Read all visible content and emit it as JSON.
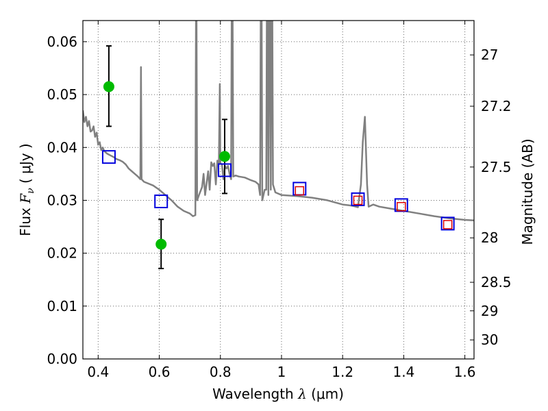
{
  "chart_data": {
    "type": "scatter",
    "title": "",
    "xlabel": {
      "prefix": "Wavelength  ",
      "symbol": "λ",
      "units": " (μm)"
    },
    "ylabel": {
      "prefix": "Flux  ",
      "symbol": "F",
      "sub": "ν",
      "units": "  ( μJy )"
    },
    "y2label": "Magnitude (AB)",
    "xlim": [
      0.35,
      1.63
    ],
    "ylim": [
      0.0,
      0.064
    ],
    "xticks": [
      0.4,
      0.6,
      0.8,
      1.0,
      1.2,
      1.4,
      1.6
    ],
    "xtick_labels": [
      "0.4",
      "0.6",
      "0.8",
      "1",
      "1.2",
      "1.4",
      "1.6"
    ],
    "yticks": [
      0.0,
      0.01,
      0.02,
      0.03,
      0.04,
      0.05,
      0.06
    ],
    "ytick_labels": [
      "0.00",
      "0.01",
      "0.02",
      "0.03",
      "0.04",
      "0.05",
      "0.06"
    ],
    "y2ticks": [
      {
        "label": "27",
        "flux": 0.0575
      },
      {
        "label": "27.2",
        "flux": 0.0478
      },
      {
        "label": "27.5",
        "flux": 0.0363
      },
      {
        "label": "28",
        "flux": 0.0229
      },
      {
        "label": "28.5",
        "flux": 0.0145
      },
      {
        "label": "29",
        "flux": 0.0091
      },
      {
        "label": "30",
        "flux": 0.0036
      }
    ],
    "grid": true,
    "colors": {
      "spectrum": "#808080",
      "observed": "#00bb00",
      "errorbar": "#000000",
      "model": "#0000dd",
      "model_inner": "#dd0000"
    },
    "series": [
      {
        "name": "model spectrum",
        "type": "line",
        "points": [
          [
            0.35,
            0.047
          ],
          [
            0.355,
            0.0448
          ],
          [
            0.36,
            0.0458
          ],
          [
            0.365,
            0.044
          ],
          [
            0.37,
            0.045
          ],
          [
            0.375,
            0.043
          ],
          [
            0.38,
            0.0432
          ],
          [
            0.385,
            0.044
          ],
          [
            0.39,
            0.042
          ],
          [
            0.395,
            0.0428
          ],
          [
            0.4,
            0.0405
          ],
          [
            0.405,
            0.041
          ],
          [
            0.41,
            0.0395
          ],
          [
            0.415,
            0.04
          ],
          [
            0.42,
            0.0393
          ],
          [
            0.43,
            0.0388
          ],
          [
            0.44,
            0.0385
          ],
          [
            0.45,
            0.0382
          ],
          [
            0.46,
            0.0378
          ],
          [
            0.47,
            0.0376
          ],
          [
            0.48,
            0.0373
          ],
          [
            0.49,
            0.0368
          ],
          [
            0.5,
            0.036
          ],
          [
            0.51,
            0.0355
          ],
          [
            0.52,
            0.035
          ],
          [
            0.53,
            0.0345
          ],
          [
            0.538,
            0.034
          ],
          [
            0.54,
            0.0552
          ],
          [
            0.542,
            0.034
          ],
          [
            0.55,
            0.0335
          ],
          [
            0.58,
            0.0328
          ],
          [
            0.6,
            0.032
          ],
          [
            0.62,
            0.031
          ],
          [
            0.64,
            0.03
          ],
          [
            0.66,
            0.0288
          ],
          [
            0.68,
            0.028
          ],
          [
            0.7,
            0.0275
          ],
          [
            0.71,
            0.027
          ],
          [
            0.718,
            0.0272
          ],
          [
            0.72,
            0.064
          ],
          [
            0.722,
            0.064
          ],
          [
            0.724,
            0.03
          ],
          [
            0.73,
            0.031
          ],
          [
            0.74,
            0.0325
          ],
          [
            0.745,
            0.035
          ],
          [
            0.75,
            0.031
          ],
          [
            0.76,
            0.0355
          ],
          [
            0.765,
            0.032
          ],
          [
            0.77,
            0.0372
          ],
          [
            0.775,
            0.0365
          ],
          [
            0.78,
            0.037
          ],
          [
            0.785,
            0.033
          ],
          [
            0.79,
            0.0375
          ],
          [
            0.795,
            0.0368
          ],
          [
            0.798,
            0.052
          ],
          [
            0.8,
            0.037
          ],
          [
            0.805,
            0.0368
          ],
          [
            0.81,
            0.034
          ],
          [
            0.815,
            0.0365
          ],
          [
            0.82,
            0.036
          ],
          [
            0.825,
            0.0365
          ],
          [
            0.83,
            0.035
          ],
          [
            0.835,
            0.034
          ],
          [
            0.837,
            0.064
          ],
          [
            0.84,
            0.064
          ],
          [
            0.842,
            0.0345
          ],
          [
            0.85,
            0.0347
          ],
          [
            0.86,
            0.0345
          ],
          [
            0.88,
            0.0343
          ],
          [
            0.9,
            0.0338
          ],
          [
            0.915,
            0.0335
          ],
          [
            0.925,
            0.033
          ],
          [
            0.93,
            0.031
          ],
          [
            0.932,
            0.064
          ],
          [
            0.935,
            0.064
          ],
          [
            0.937,
            0.03
          ],
          [
            0.945,
            0.032
          ],
          [
            0.95,
            0.032
          ],
          [
            0.952,
            0.064
          ],
          [
            0.955,
            0.064
          ],
          [
            0.957,
            0.031
          ],
          [
            0.96,
            0.064
          ],
          [
            0.963,
            0.064
          ],
          [
            0.965,
            0.032
          ],
          [
            0.967,
            0.064
          ],
          [
            0.97,
            0.064
          ],
          [
            0.972,
            0.033
          ],
          [
            0.98,
            0.0315
          ],
          [
            1.0,
            0.031
          ],
          [
            1.05,
            0.0308
          ],
          [
            1.1,
            0.0305
          ],
          [
            1.15,
            0.03
          ],
          [
            1.2,
            0.0292
          ],
          [
            1.23,
            0.029
          ],
          [
            1.25,
            0.0287
          ],
          [
            1.26,
            0.033
          ],
          [
            1.266,
            0.041
          ],
          [
            1.273,
            0.0458
          ],
          [
            1.28,
            0.033
          ],
          [
            1.285,
            0.0288
          ],
          [
            1.3,
            0.0292
          ],
          [
            1.32,
            0.0288
          ],
          [
            1.35,
            0.0285
          ],
          [
            1.4,
            0.028
          ],
          [
            1.45,
            0.0275
          ],
          [
            1.5,
            0.027
          ],
          [
            1.55,
            0.0266
          ],
          [
            1.6,
            0.0263
          ],
          [
            1.63,
            0.0262
          ]
        ]
      },
      {
        "name": "observed photometry",
        "type": "scatter-errorbar",
        "points": [
          {
            "x": 0.435,
            "y": 0.0515,
            "ylow": 0.044,
            "yhigh": 0.0592
          },
          {
            "x": 0.606,
            "y": 0.0217,
            "ylow": 0.0171,
            "yhigh": 0.0264
          },
          {
            "x": 0.814,
            "y": 0.0383,
            "ylow": 0.0313,
            "yhigh": 0.0453
          }
        ]
      },
      {
        "name": "model photometry",
        "type": "scatter",
        "points": [
          {
            "x": 0.435,
            "y": 0.0382
          },
          {
            "x": 0.606,
            "y": 0.0298
          },
          {
            "x": 0.814,
            "y": 0.0357
          },
          {
            "x": 1.059,
            "y": 0.0322
          },
          {
            "x": 1.25,
            "y": 0.0302
          },
          {
            "x": 1.392,
            "y": 0.0291
          },
          {
            "x": 1.544,
            "y": 0.0256
          }
        ]
      },
      {
        "name": "model photometry (inner)",
        "type": "scatter",
        "points": [
          {
            "x": 1.059,
            "y": 0.0318
          },
          {
            "x": 1.25,
            "y": 0.03
          },
          {
            "x": 1.392,
            "y": 0.0288
          },
          {
            "x": 1.544,
            "y": 0.0254
          }
        ]
      }
    ]
  }
}
